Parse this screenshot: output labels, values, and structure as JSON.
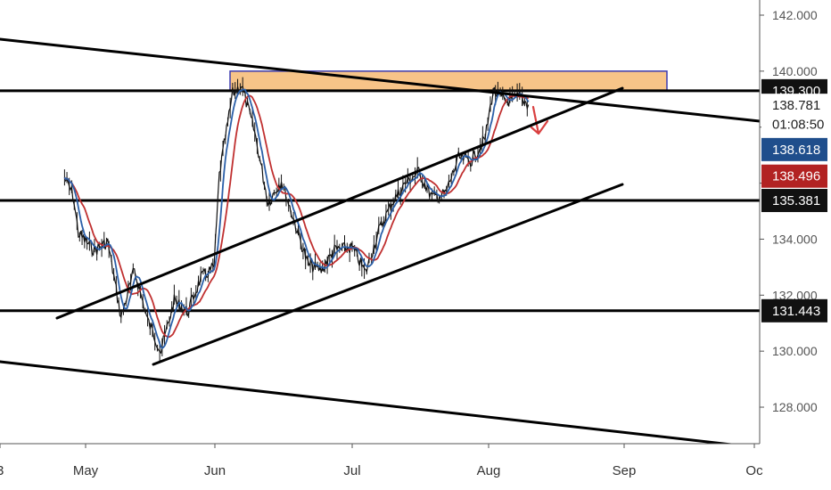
{
  "chart_data": {
    "type": "line",
    "title": "",
    "xlabel": "",
    "ylabel": "",
    "ylim": [
      126.7,
      143.0
    ],
    "grid": false,
    "x_ticks": [
      "3",
      "May",
      "Jun",
      "Jul",
      "Aug",
      "Sep",
      "Oc"
    ],
    "y_ticks": [
      "142.000",
      "140.000",
      "138.000",
      "136.000",
      "134.000",
      "132.000",
      "130.000",
      "128.000"
    ],
    "series": [
      {
        "color": "#1a1a1a",
        "x": [
          "Apr 25",
          "Apr 28",
          "Apr 30",
          "May 3",
          "May 6",
          "May 9",
          "May 12",
          "May 15",
          "May 18",
          "May 21",
          "May 24",
          "May 27",
          "May 30",
          "Jun 2",
          "Jun 5",
          "Jun 7",
          "Jun 10",
          "Jun 13",
          "Jun 16",
          "Jun 19",
          "Jun 22",
          "Jun 25",
          "Jun 28",
          "Jul 1",
          "Jul 4",
          "Jul 7",
          "Jul 10",
          "Jul 13",
          "Jul 16",
          "Jul 19",
          "Jul 22",
          "Jul 25",
          "Jul 28",
          "Jul 31",
          "Aug 2",
          "Aug 5",
          "Aug 8",
          "Aug 10"
        ],
        "y": [
          136.2,
          135.6,
          134.2,
          133.6,
          133.9,
          131.2,
          132.9,
          131.1,
          130.0,
          131.8,
          131.4,
          132.6,
          133.0,
          136.3,
          139.2,
          139.5,
          137.8,
          135.3,
          136.1,
          134.6,
          133.1,
          132.9,
          133.6,
          133.7,
          132.8,
          134.3,
          135.3,
          136.0,
          136.4,
          135.5,
          135.6,
          136.9,
          136.8,
          137.6,
          139.3,
          138.9,
          139.1,
          138.8
        ]
      }
    ],
    "horizontal_levels": [
      {
        "label": "139.300",
        "value": 139.3
      },
      {
        "label": "135.381",
        "value": 135.381
      },
      {
        "label": "131.443",
        "value": 131.443
      }
    ],
    "price_tags": [
      {
        "label": "138.781",
        "value": 138.781,
        "color": "#ffffff",
        "text_color": "#222222"
      },
      {
        "label": "01:08:50",
        "value": 138.1,
        "color": "#ffffff",
        "text_color": "#222222"
      },
      {
        "label": "138.618",
        "value": 137.2,
        "color": "#1f4e8c",
        "text_color": "#ffffff"
      },
      {
        "label": "138.496",
        "value": 136.25,
        "color": "#b22222",
        "text_color": "#ffffff"
      }
    ],
    "zone": {
      "from": 139.3,
      "to": 140.0,
      "color": "#f7c488"
    },
    "ma_colors": {
      "fast": "#2b5fa8",
      "slow": "#c03030"
    },
    "arrow_color": "#d94040"
  }
}
